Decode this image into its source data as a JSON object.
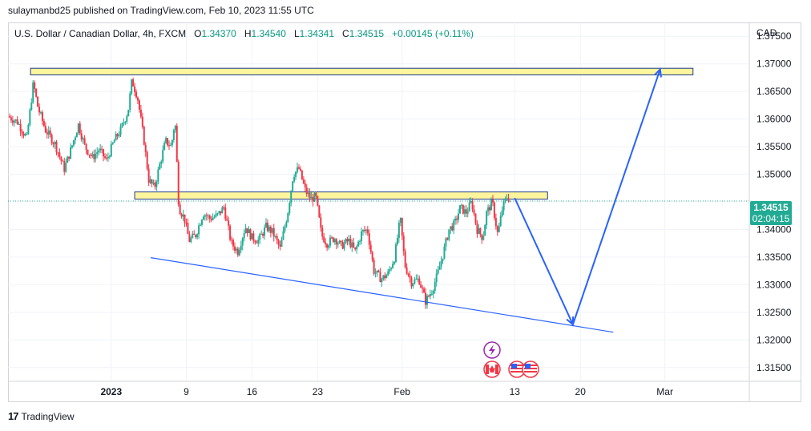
{
  "header": {
    "published_text": "sulaymanbd25 published on TradingView.com, Feb 10, 2023 11:55 UTC"
  },
  "legend": {
    "symbol": "U.S. Dollar / Canadian Dollar, 4h, FXCM",
    "open_label": "O",
    "open": "1.34370",
    "high_label": "H",
    "high": "1.34540",
    "low_label": "L",
    "low": "1.34341",
    "close_label": "C",
    "close": "1.34515",
    "change": "+0.00145 (+0.11%)"
  },
  "currency": "CAD",
  "last_price": {
    "price": "1.34515",
    "countdown": "02:04:15",
    "value": 1.34515,
    "color": "#22ab94"
  },
  "footer": {
    "brand": "TradingView",
    "logo_mark": "17"
  },
  "colors": {
    "up": "#22ab94",
    "down": "#f23645",
    "zone_fill": "#fff59d",
    "zone_stroke": "#1e3a8a",
    "projection": "#2962ff",
    "trendline": "#2962ff"
  },
  "icons": [
    "lightning-event-icon",
    "canada-flag-icon",
    "us-flag-icon",
    "us-flag-icon"
  ],
  "chart_data": {
    "type": "candlestick",
    "title": "U.S. Dollar / Canadian Dollar, 4h, FXCM",
    "ylabel": "CAD",
    "ylim": [
      1.3125,
      1.3775
    ],
    "y_ticks": [
      1.375,
      1.37,
      1.365,
      1.36,
      1.355,
      1.35,
      1.345,
      1.34,
      1.335,
      1.33,
      1.325,
      1.32,
      1.315
    ],
    "y_tick_labels": [
      "1.37500",
      "1.37000",
      "1.36500",
      "1.36000",
      "1.35500",
      "1.35000",
      "1.34515",
      "1.34000",
      "1.33500",
      "1.33000",
      "1.32500",
      "1.32000",
      "1.31500"
    ],
    "x_ticks": [
      {
        "label": "2023",
        "day": 0
      },
      {
        "label": "9",
        "day": 8
      },
      {
        "label": "16",
        "day": 15
      },
      {
        "label": "23",
        "day": 22
      },
      {
        "label": "Feb",
        "day": 31
      },
      {
        "label": "13",
        "day": 43
      },
      {
        "label": "20",
        "day": 50
      },
      {
        "label": "Mar",
        "day": 59
      }
    ],
    "xlim_days": [
      -11,
      68
    ],
    "series": [
      {
        "name": "USDCAD 4h close path",
        "points": [
          {
            "day": -11,
            "close": 1.3605
          },
          {
            "day": -10,
            "close": 1.3595
          },
          {
            "day": -9,
            "close": 1.3565
          },
          {
            "day": -8.3,
            "close": 1.3665
          },
          {
            "day": -7.8,
            "close": 1.362
          },
          {
            "day": -7,
            "close": 1.358
          },
          {
            "day": -6,
            "close": 1.3555
          },
          {
            "day": -5,
            "close": 1.351
          },
          {
            "day": -4.3,
            "close": 1.3545
          },
          {
            "day": -3.5,
            "close": 1.359
          },
          {
            "day": -2.8,
            "close": 1.355
          },
          {
            "day": -2,
            "close": 1.353
          },
          {
            "day": -1.3,
            "close": 1.3545
          },
          {
            "day": -0.5,
            "close": 1.3525
          },
          {
            "day": 0.3,
            "close": 1.356
          },
          {
            "day": 1,
            "close": 1.358
          },
          {
            "day": 1.8,
            "close": 1.3615
          },
          {
            "day": 2.2,
            "close": 1.367
          },
          {
            "day": 2.8,
            "close": 1.364
          },
          {
            "day": 3.5,
            "close": 1.356
          },
          {
            "day": 4,
            "close": 1.349
          },
          {
            "day": 4.6,
            "close": 1.3475
          },
          {
            "day": 5.2,
            "close": 1.352
          },
          {
            "day": 5.8,
            "close": 1.356
          },
          {
            "day": 6.4,
            "close": 1.355
          },
          {
            "day": 6.8,
            "close": 1.36
          },
          {
            "day": 7.2,
            "close": 1.344
          },
          {
            "day": 7.8,
            "close": 1.342
          },
          {
            "day": 8.3,
            "close": 1.338
          },
          {
            "day": 9,
            "close": 1.339
          },
          {
            "day": 9.8,
            "close": 1.343
          },
          {
            "day": 10.5,
            "close": 1.342
          },
          {
            "day": 11.3,
            "close": 1.3425
          },
          {
            "day": 12,
            "close": 1.344
          },
          {
            "day": 12.8,
            "close": 1.3375
          },
          {
            "day": 13.5,
            "close": 1.336
          },
          {
            "day": 14.3,
            "close": 1.3405
          },
          {
            "day": 15,
            "close": 1.3385
          },
          {
            "day": 15.7,
            "close": 1.338
          },
          {
            "day": 16.5,
            "close": 1.3405
          },
          {
            "day": 17.2,
            "close": 1.3395
          },
          {
            "day": 18,
            "close": 1.3365
          },
          {
            "day": 18.8,
            "close": 1.343
          },
          {
            "day": 19.4,
            "close": 1.35
          },
          {
            "day": 20,
            "close": 1.351
          },
          {
            "day": 20.7,
            "close": 1.347
          },
          {
            "day": 21.3,
            "close": 1.3455
          },
          {
            "day": 21.8,
            "close": 1.346
          },
          {
            "day": 22.4,
            "close": 1.339
          },
          {
            "day": 23,
            "close": 1.3375
          },
          {
            "day": 23.8,
            "close": 1.3385
          },
          {
            "day": 24.5,
            "close": 1.337
          },
          {
            "day": 25.3,
            "close": 1.338
          },
          {
            "day": 26,
            "close": 1.336
          },
          {
            "day": 26.7,
            "close": 1.3395
          },
          {
            "day": 27.3,
            "close": 1.34
          },
          {
            "day": 28,
            "close": 1.3325
          },
          {
            "day": 28.8,
            "close": 1.331
          },
          {
            "day": 29.5,
            "close": 1.332
          },
          {
            "day": 30.2,
            "close": 1.335
          },
          {
            "day": 30.8,
            "close": 1.342
          },
          {
            "day": 31.3,
            "close": 1.3335
          },
          {
            "day": 32,
            "close": 1.3305
          },
          {
            "day": 32.8,
            "close": 1.331
          },
          {
            "day": 33.5,
            "close": 1.327
          },
          {
            "day": 34.2,
            "close": 1.329
          },
          {
            "day": 34.8,
            "close": 1.332
          },
          {
            "day": 35.5,
            "close": 1.3365
          },
          {
            "day": 36,
            "close": 1.34
          },
          {
            "day": 36.6,
            "close": 1.341
          },
          {
            "day": 37.2,
            "close": 1.344
          },
          {
            "day": 37.8,
            "close": 1.343
          },
          {
            "day": 38.4,
            "close": 1.345
          },
          {
            "day": 39,
            "close": 1.34
          },
          {
            "day": 39.6,
            "close": 1.3385
          },
          {
            "day": 40,
            "close": 1.343
          },
          {
            "day": 40.6,
            "close": 1.345
          },
          {
            "day": 41.2,
            "close": 1.339
          },
          {
            "day": 41.7,
            "close": 1.344
          },
          {
            "day": 42.2,
            "close": 1.346
          },
          {
            "day": 42.6,
            "close": 1.345
          }
        ]
      }
    ],
    "annotations": [
      {
        "type": "zone",
        "name": "upper resistance zone",
        "x_days": [
          -8.6,
          62
        ],
        "y": [
          1.368,
          1.3692
        ]
      },
      {
        "type": "zone",
        "name": "middle resistance zone",
        "x_days": [
          2.5,
          46.5
        ],
        "y": [
          1.3455,
          1.3468
        ]
      },
      {
        "type": "trendline",
        "name": "descending support",
        "from": {
          "day": 4.2,
          "price": 1.3349
        },
        "to": {
          "day": 53.5,
          "price": 1.3214
        }
      },
      {
        "type": "projection",
        "name": "projected path",
        "points": [
          {
            "day": 43,
            "price": 1.3457
          },
          {
            "day": 49.2,
            "price": 1.3228
          },
          {
            "day": 58.5,
            "price": 1.369
          }
        ]
      }
    ],
    "grid": true,
    "legend_position": "top-left"
  }
}
